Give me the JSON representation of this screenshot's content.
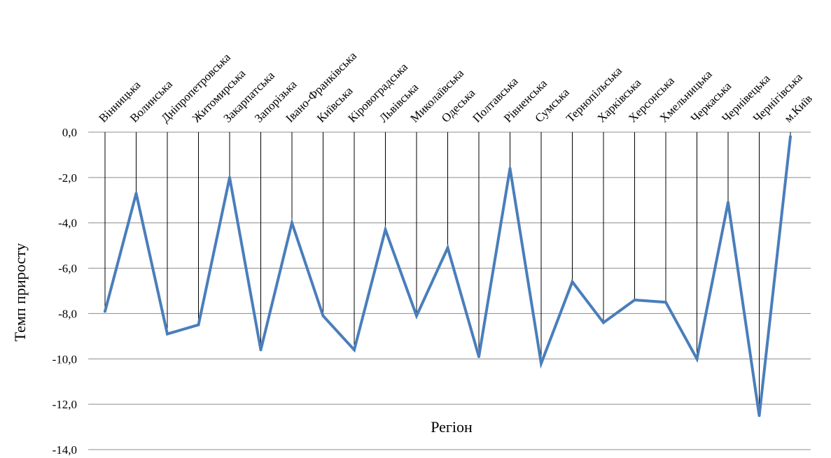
{
  "chart_data": {
    "type": "line",
    "categories": [
      "Вінницька",
      "Волинська",
      "Дніпропетровська",
      "Житомирська",
      "Закарпатська",
      "Запорізька",
      "Івано-Франківська",
      "Київська",
      "Кіровоградська",
      "Львівська",
      "Миколаївська",
      "Одеська",
      "Полтавська",
      "Рівненська",
      "Сумська",
      "Тернопільська",
      "Харківська",
      "Херсонська",
      "Хмельницька",
      "Черкаська",
      "Чернівецька",
      "Чернігівська",
      "м.Київ"
    ],
    "series": [
      {
        "values": [
          -7.9,
          -2.7,
          -8.9,
          -8.5,
          -2.0,
          -9.6,
          -4.0,
          -8.1,
          -9.6,
          -4.3,
          -8.1,
          -5.1,
          -9.9,
          -1.6,
          -10.2,
          -6.6,
          -8.4,
          -7.4,
          -7.5,
          -10.0,
          -3.1,
          -12.5,
          -0.2
        ]
      }
    ],
    "yticks": [
      "0,0",
      "-2,0",
      "-4,0",
      "-6,0",
      "-8,0",
      "-10,0",
      "-12,0",
      "-14,0"
    ],
    "ylim": [
      -14,
      0
    ],
    "ylabel": "Темп приросту",
    "xlabel": "Регіон",
    "grid": true,
    "drop_lines": true,
    "line_color": "#4a7ebb"
  }
}
